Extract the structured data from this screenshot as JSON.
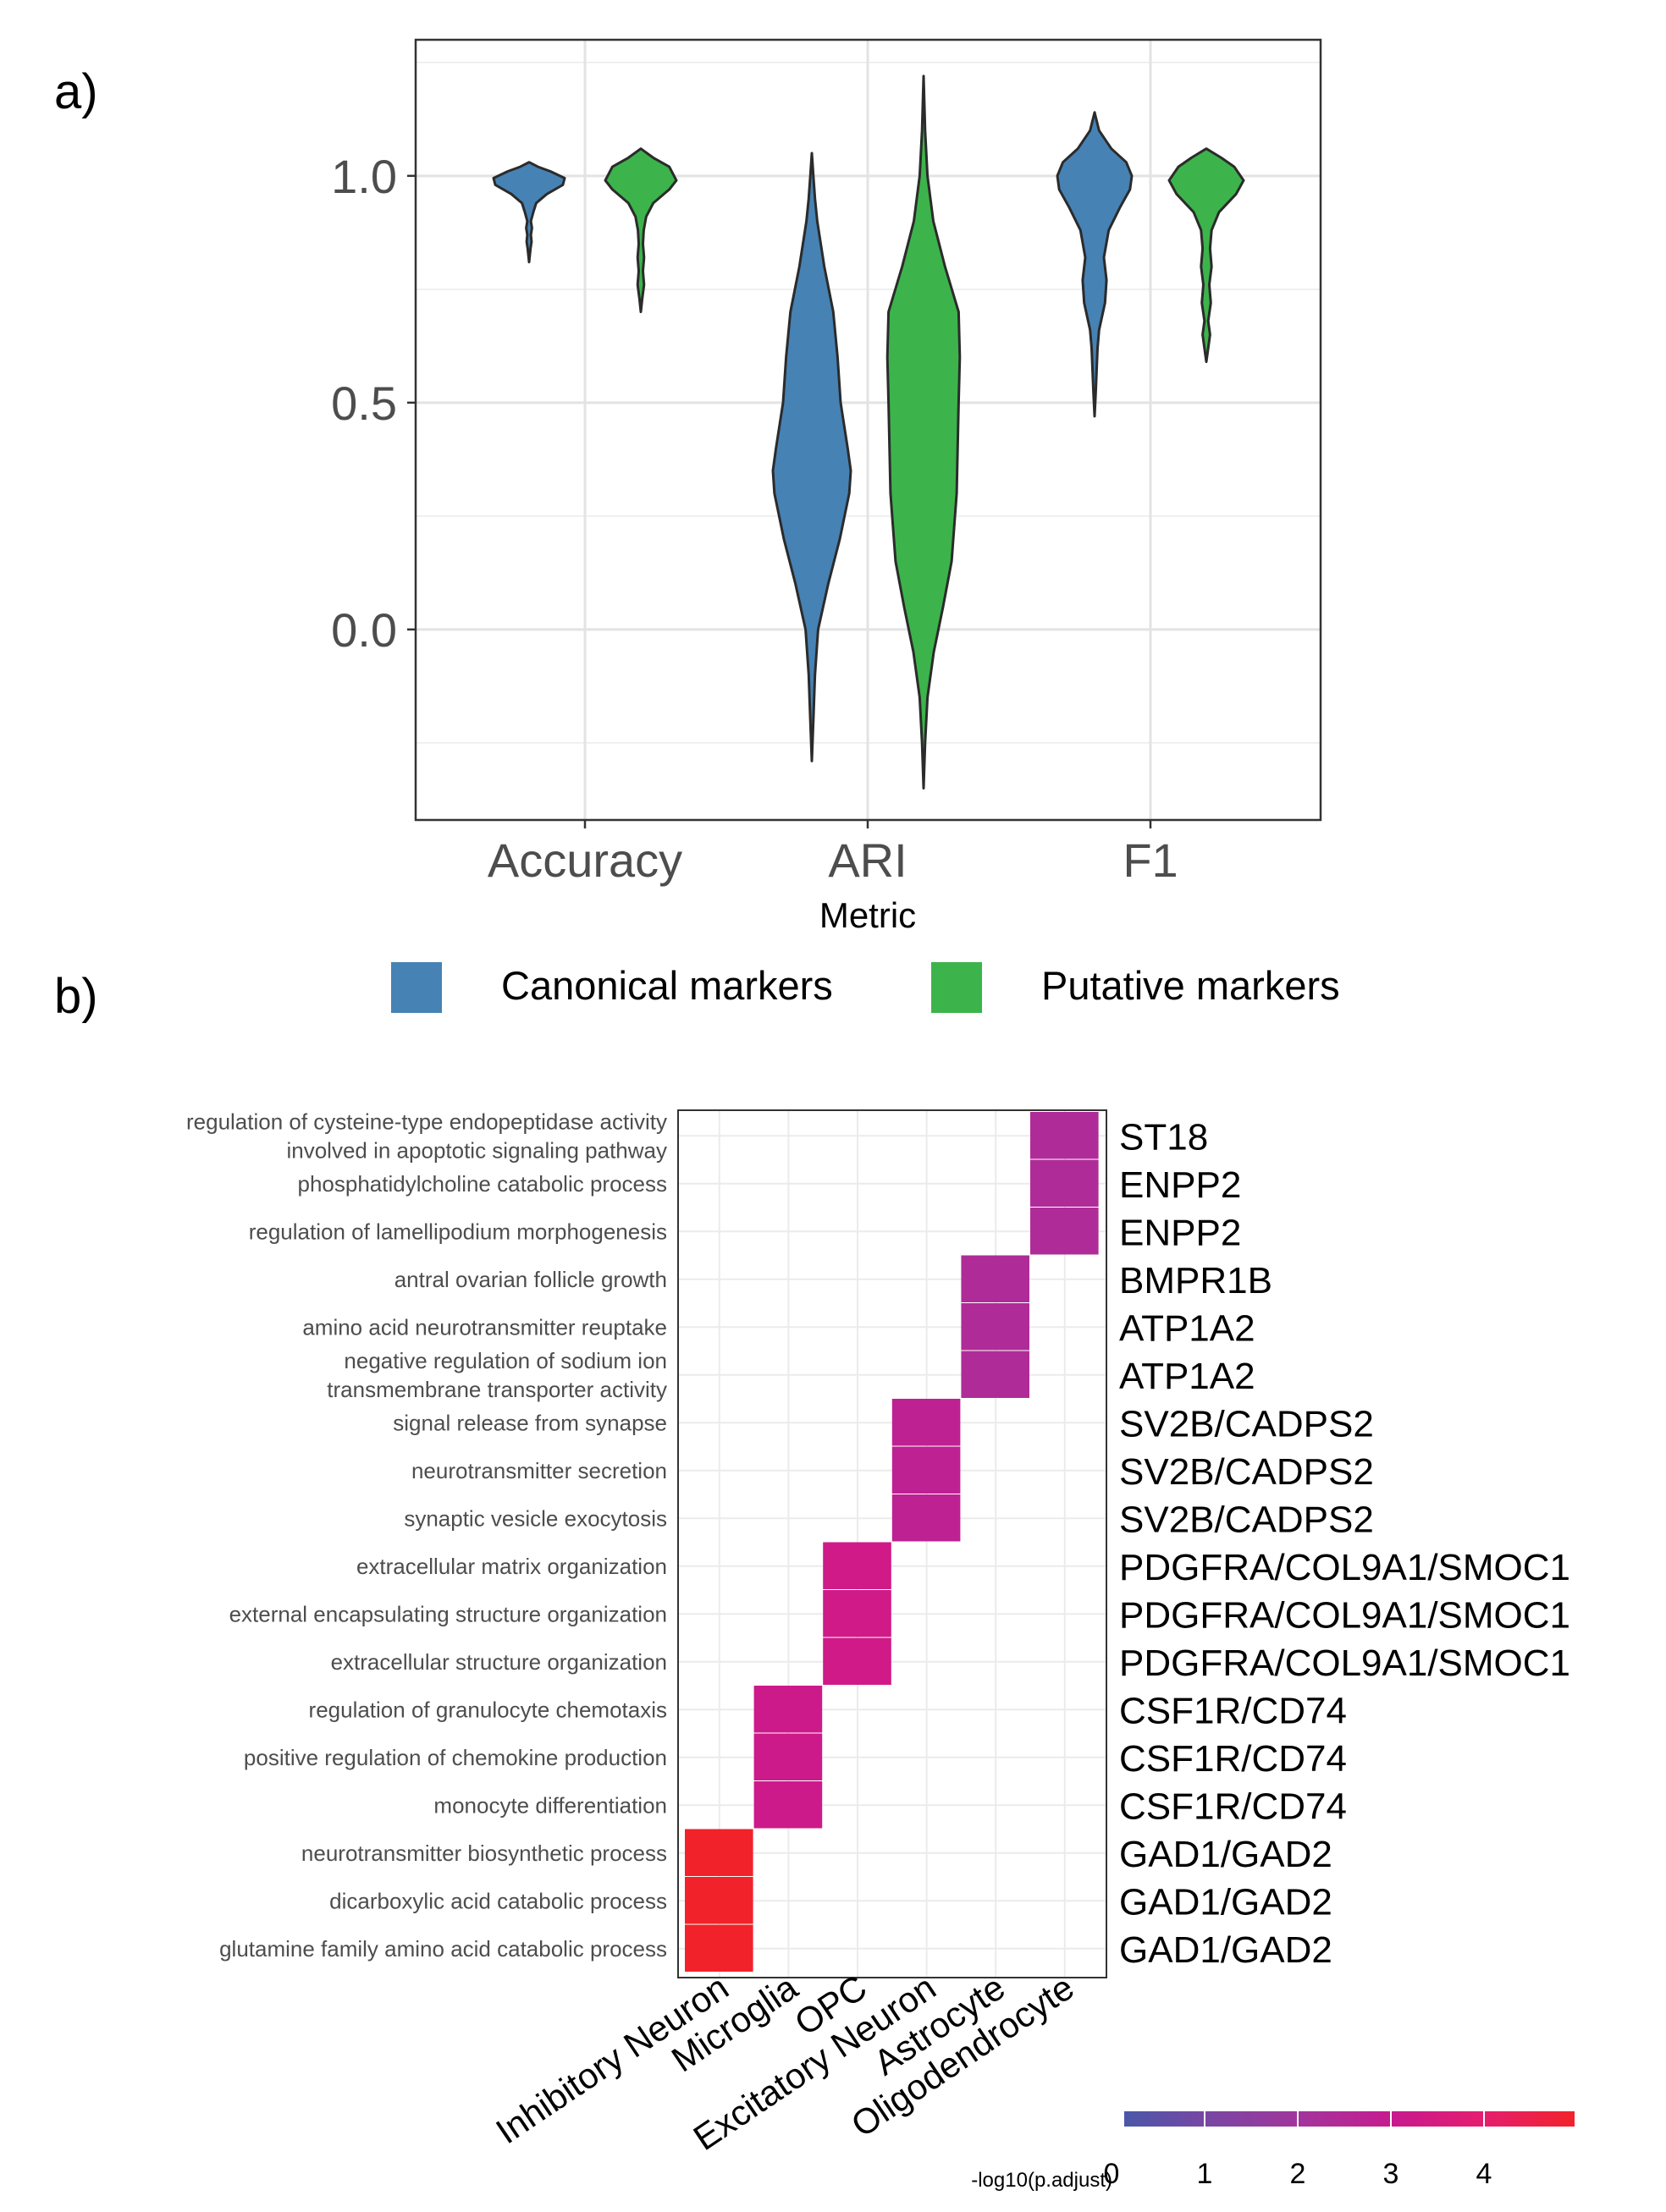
{
  "chart_data": [
    {
      "type": "violin",
      "panel_label": "a)",
      "xlabel": "Metric",
      "ylabel": "",
      "ylim": [
        -0.42,
        1.3
      ],
      "yticks": [
        0.0,
        0.5,
        1.0
      ],
      "ytick_labels": [
        "0.0",
        "0.5",
        "1.0"
      ],
      "categories": [
        "Accuracy",
        "ARI",
        "F1"
      ],
      "grid": true,
      "legend_position": "bottom",
      "series": [
        {
          "name": "Canonical markers",
          "color": "#4682B4",
          "violins": [
            {
              "category": "Accuracy",
              "min": 0.81,
              "max": 1.03,
              "profile": [
                [
                  0.81,
                  0.0
                ],
                [
                  0.84,
                  0.04
                ],
                [
                  0.855,
                  0.07
                ],
                [
                  0.87,
                  0.05
                ],
                [
                  0.885,
                  0.08
                ],
                [
                  0.9,
                  0.05
                ],
                [
                  0.92,
                  0.12
                ],
                [
                  0.94,
                  0.2
                ],
                [
                  0.96,
                  0.5
                ],
                [
                  0.98,
                  0.95
                ],
                [
                  0.995,
                  1.0
                ],
                [
                  1.01,
                  0.6
                ],
                [
                  1.02,
                  0.25
                ],
                [
                  1.03,
                  0.0
                ]
              ]
            },
            {
              "category": "ARI",
              "min": -0.29,
              "max": 1.05,
              "profile": [
                [
                  -0.29,
                  0.0
                ],
                [
                  -0.2,
                  0.04
                ],
                [
                  -0.1,
                  0.08
                ],
                [
                  0.0,
                  0.16
                ],
                [
                  0.1,
                  0.42
                ],
                [
                  0.2,
                  0.72
                ],
                [
                  0.3,
                  0.96
                ],
                [
                  0.35,
                  1.0
                ],
                [
                  0.4,
                  0.92
                ],
                [
                  0.5,
                  0.74
                ],
                [
                  0.6,
                  0.66
                ],
                [
                  0.7,
                  0.55
                ],
                [
                  0.8,
                  0.32
                ],
                [
                  0.9,
                  0.14
                ],
                [
                  0.95,
                  0.08
                ],
                [
                  1.0,
                  0.04
                ],
                [
                  1.05,
                  0.0
                ]
              ]
            },
            {
              "category": "F1",
              "min": 0.47,
              "max": 1.14,
              "profile": [
                [
                  0.47,
                  0.0
                ],
                [
                  0.52,
                  0.03
                ],
                [
                  0.58,
                  0.06
                ],
                [
                  0.62,
                  0.08
                ],
                [
                  0.66,
                  0.12
                ],
                [
                  0.72,
                  0.28
                ],
                [
                  0.77,
                  0.32
                ],
                [
                  0.82,
                  0.25
                ],
                [
                  0.88,
                  0.38
                ],
                [
                  0.93,
                  0.68
                ],
                [
                  0.97,
                  0.95
                ],
                [
                  1.0,
                  1.0
                ],
                [
                  1.03,
                  0.85
                ],
                [
                  1.06,
                  0.45
                ],
                [
                  1.1,
                  0.12
                ],
                [
                  1.14,
                  0.0
                ]
              ]
            }
          ]
        },
        {
          "name": "Putative markers",
          "color": "#3CB44B",
          "violins": [
            {
              "category": "Accuracy",
              "min": 0.7,
              "max": 1.06,
              "profile": [
                [
                  0.7,
                  0.0
                ],
                [
                  0.73,
                  0.04
                ],
                [
                  0.76,
                  0.09
                ],
                [
                  0.79,
                  0.06
                ],
                [
                  0.82,
                  0.09
                ],
                [
                  0.85,
                  0.06
                ],
                [
                  0.88,
                  0.08
                ],
                [
                  0.91,
                  0.15
                ],
                [
                  0.94,
                  0.35
                ],
                [
                  0.97,
                  0.8
                ],
                [
                  0.99,
                  1.0
                ],
                [
                  1.02,
                  0.8
                ],
                [
                  1.04,
                  0.35
                ],
                [
                  1.06,
                  0.0
                ]
              ]
            },
            {
              "category": "ARI",
              "min": -0.35,
              "max": 1.22,
              "profile": [
                [
                  -0.35,
                  0.0
                ],
                [
                  -0.25,
                  0.04
                ],
                [
                  -0.15,
                  0.1
                ],
                [
                  -0.05,
                  0.26
                ],
                [
                  0.05,
                  0.5
                ],
                [
                  0.15,
                  0.72
                ],
                [
                  0.3,
                  0.85
                ],
                [
                  0.5,
                  0.9
                ],
                [
                  0.6,
                  0.93
                ],
                [
                  0.7,
                  0.9
                ],
                [
                  0.8,
                  0.55
                ],
                [
                  0.9,
                  0.25
                ],
                [
                  1.0,
                  0.1
                ],
                [
                  1.1,
                  0.04
                ],
                [
                  1.22,
                  0.0
                ]
              ]
            },
            {
              "category": "F1",
              "min": 0.59,
              "max": 1.06,
              "profile": [
                [
                  0.59,
                  0.0
                ],
                [
                  0.62,
                  0.05
                ],
                [
                  0.65,
                  0.1
                ],
                [
                  0.68,
                  0.05
                ],
                [
                  0.72,
                  0.12
                ],
                [
                  0.76,
                  0.08
                ],
                [
                  0.8,
                  0.14
                ],
                [
                  0.84,
                  0.1
                ],
                [
                  0.88,
                  0.14
                ],
                [
                  0.92,
                  0.34
                ],
                [
                  0.96,
                  0.8
                ],
                [
                  0.99,
                  1.0
                ],
                [
                  1.02,
                  0.75
                ],
                [
                  1.04,
                  0.4
                ],
                [
                  1.06,
                  0.0
                ]
              ]
            }
          ]
        }
      ]
    },
    {
      "type": "heatmap",
      "panel_label": "b)",
      "x_categories": [
        "Inhibitory Neuron",
        "Microglia",
        "OPC",
        "Excitatory Neuron",
        "Astrocyte",
        "Oligodendrocyte"
      ],
      "rows": [
        {
          "term": "regulation of cysteine-type endopeptidase activity\ninvolved in apoptotic signaling pathway",
          "genes": "ST18",
          "cell": "Oligodendrocyte",
          "value": 2.2
        },
        {
          "term": "phosphatidylcholine catabolic process",
          "genes": "ENPP2",
          "cell": "Oligodendrocyte",
          "value": 2.2
        },
        {
          "term": "regulation of lamellipodium morphogenesis",
          "genes": "ENPP2",
          "cell": "Oligodendrocyte",
          "value": 2.2
        },
        {
          "term": "antral ovarian follicle growth",
          "genes": "BMPR1B",
          "cell": "Astrocyte",
          "value": 2.2
        },
        {
          "term": "amino acid neurotransmitter reuptake",
          "genes": "ATP1A2",
          "cell": "Astrocyte",
          "value": 2.2
        },
        {
          "term": "negative regulation of sodium ion\ntransmembrane transporter activity",
          "genes": "ATP1A2",
          "cell": "Astrocyte",
          "value": 2.2
        },
        {
          "term": "signal release from synapse",
          "genes": "SV2B/CADPS2",
          "cell": "Excitatory Neuron",
          "value": 2.6
        },
        {
          "term": "neurotransmitter secretion",
          "genes": "SV2B/CADPS2",
          "cell": "Excitatory Neuron",
          "value": 2.6
        },
        {
          "term": "synaptic vesicle exocytosis",
          "genes": "SV2B/CADPS2",
          "cell": "Excitatory Neuron",
          "value": 2.6
        },
        {
          "term": "extracellular matrix organization",
          "genes": "PDGFRA/COL9A1/SMOC1",
          "cell": "OPC",
          "value": 3.1
        },
        {
          "term": "external encapsulating structure organization",
          "genes": "PDGFRA/COL9A1/SMOC1",
          "cell": "OPC",
          "value": 3.1
        },
        {
          "term": "extracellular structure organization",
          "genes": "PDGFRA/COL9A1/SMOC1",
          "cell": "OPC",
          "value": 3.1
        },
        {
          "term": "regulation of granulocyte chemotaxis",
          "genes": "CSF1R/CD74",
          "cell": "Microglia",
          "value": 3.0
        },
        {
          "term": "positive regulation of chemokine production",
          "genes": "CSF1R/CD74",
          "cell": "Microglia",
          "value": 3.0
        },
        {
          "term": "monocyte differentiation",
          "genes": "CSF1R/CD74",
          "cell": "Microglia",
          "value": 3.0
        },
        {
          "term": "neurotransmitter biosynthetic process",
          "genes": "GAD1/GAD2",
          "cell": "Inhibitory Neuron",
          "value": 5.0
        },
        {
          "term": "dicarboxylic acid catabolic process",
          "genes": "GAD1/GAD2",
          "cell": "Inhibitory Neuron",
          "value": 5.0
        },
        {
          "term": "glutamine family amino acid catabolic process",
          "genes": "GAD1/GAD2",
          "cell": "Inhibitory Neuron",
          "value": 5.0
        }
      ],
      "colorbar": {
        "title": "-log10(p.adjust)",
        "ticks": [
          0,
          1,
          2,
          3,
          4
        ],
        "tick_labels": [
          "0",
          "1",
          "2",
          "3",
          "4"
        ],
        "range": [
          0,
          4.8
        ],
        "colors": [
          "#4A57A8",
          "#7C45A3",
          "#A4349C",
          "#C8198E",
          "#E51E6E",
          "#F2222A"
        ]
      }
    }
  ]
}
